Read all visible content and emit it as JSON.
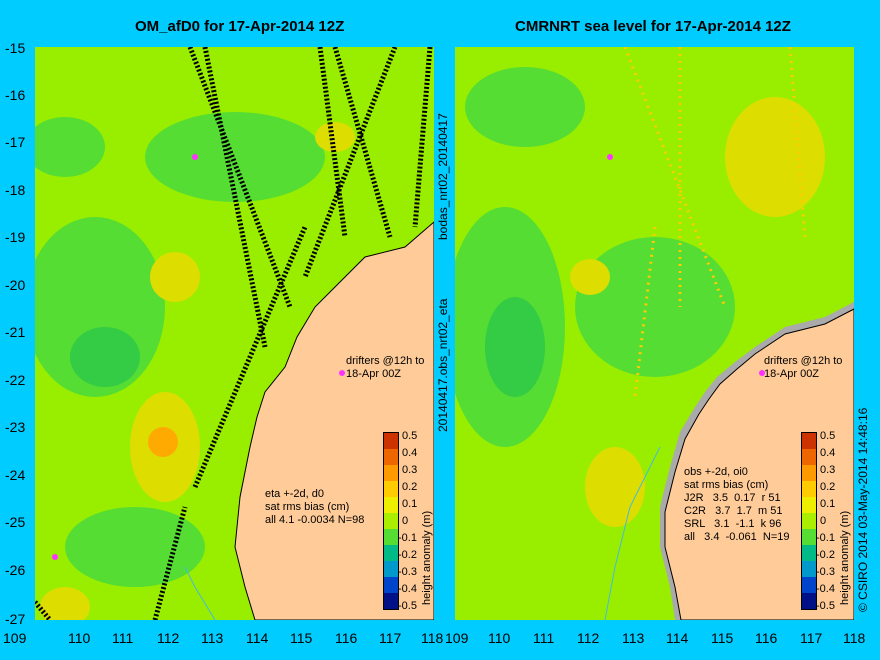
{
  "left": {
    "title": "OM_afD0 for 17-Apr-2014 12Z",
    "drifter_label_1": "drifters @12h to",
    "drifter_label_2": "18-Apr 00Z",
    "stats": [
      "eta +-2d, d0",
      "sat rms bias (cm)",
      "all 4.1 -0.0034 N=98"
    ]
  },
  "right": {
    "title": "CMRNRT sea level  for 17-Apr-2014 12Z",
    "drifter_label_1": "drifters @12h to",
    "drifter_label_2": "18-Apr 00Z",
    "stats": [
      "obs +-2d, oi0",
      "sat rms bias (cm)",
      "J2R   3.5  0.17  r 51",
      "C2R   3.7  1.7  m 51",
      "SRL   3.1  -1.1  k 96",
      "all   3.4  -0.061  N=19"
    ]
  },
  "side_text_top": "bodas_nrt02_20140417",
  "side_text_bottom": "20140417.obs_nrt02_eta",
  "colorbar_title": "height anomaly (m)",
  "copyright": "© CSIRO 2014  03-May-2014 14:48:16",
  "y_ticks": [
    "-15",
    "-16",
    "-17",
    "-18",
    "-19",
    "-20",
    "-21",
    "-22",
    "-23",
    "-24",
    "-25",
    "-26",
    "-27"
  ],
  "x_ticks_left": [
    "109",
    "110",
    "111",
    "112",
    "113",
    "114",
    "115",
    "116",
    "117",
    "118"
  ],
  "x_ticks_right": [
    "109",
    "110",
    "111",
    "112",
    "113",
    "114",
    "115",
    "116",
    "117",
    "118"
  ],
  "colorbar_ticks": [
    "0.5",
    "0.4",
    "0.3",
    "0.2",
    "0.1",
    "0",
    "-0.1",
    "-0.2",
    "-0.3",
    "-0.4",
    "-0.5"
  ],
  "colors": {
    "background": "#00ccff",
    "land": "#ffcc99",
    "ocean_base": "#99ee00",
    "anomaly_low": "#33cc44",
    "anomaly_high": "#dddd00",
    "anomaly_peak": "#ff9900",
    "coast_shelf": "#aaaaaa"
  },
  "colorbar_colors": [
    "#cc3300",
    "#ee6600",
    "#ff9900",
    "#ffcc00",
    "#eeee00",
    "#aaee00",
    "#55dd33",
    "#00bb88",
    "#0099cc",
    "#0044cc",
    "#001188"
  ]
}
